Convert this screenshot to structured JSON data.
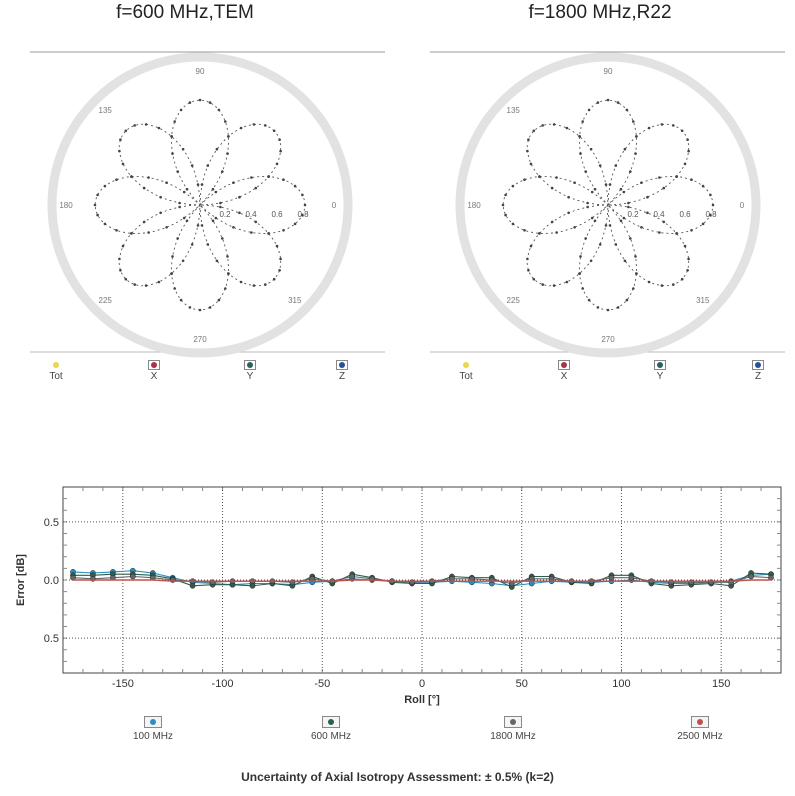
{
  "polar_plots": [
    {
      "title": "f=600 MHz,TEM",
      "angle_labels": [
        "90",
        "135",
        "180",
        "225",
        "270",
        "315",
        "0"
      ],
      "radial_labels": [
        "0.2",
        "0.4",
        "0.6",
        "0.8"
      ],
      "legend": [
        {
          "label": "Tot",
          "color": "#e8d84a"
        },
        {
          "label": "X",
          "color": "#a8324a"
        },
        {
          "label": "Y",
          "color": "#2e5e5e"
        },
        {
          "label": "Z",
          "color": "#2a4f9a"
        }
      ]
    },
    {
      "title": "f=1800 MHz,R22",
      "angle_labels": [
        "90",
        "135",
        "180",
        "225",
        "270",
        "315",
        "0"
      ],
      "radial_labels": [
        "0.2",
        "0.4",
        "0.6",
        "0.8"
      ],
      "legend": [
        {
          "label": "Tot",
          "color": "#e8d84a"
        },
        {
          "label": "X",
          "color": "#a8324a"
        },
        {
          "label": "Y",
          "color": "#2e5e5e"
        },
        {
          "label": "Z",
          "color": "#2a4f9a"
        }
      ]
    }
  ],
  "chart_data": {
    "type": "line",
    "xlabel": "Roll [°]",
    "ylabel": "Error [dB]",
    "xlim": [
      -180,
      180
    ],
    "ylim": [
      -0.8,
      0.8
    ],
    "xticks": [
      "-150",
      "-100",
      "-50",
      "0",
      "50",
      "100",
      "150"
    ],
    "yticks": [
      "0.5",
      "0.0",
      "0.5"
    ],
    "ytick_values": [
      0.5,
      0.0,
      -0.5
    ],
    "grid": true,
    "legend_position": "bottom",
    "x": [
      -175,
      -165,
      -155,
      -145,
      -135,
      -125,
      -115,
      -105,
      -95,
      -85,
      -75,
      -65,
      -55,
      -45,
      -35,
      -25,
      -15,
      -5,
      5,
      15,
      25,
      35,
      45,
      55,
      65,
      75,
      85,
      95,
      105,
      115,
      125,
      135,
      145,
      155,
      165,
      175
    ],
    "series": [
      {
        "name": "100 MHz",
        "color": "#2a8fbf",
        "values": [
          0.07,
          0.06,
          0.07,
          0.08,
          0.06,
          0.02,
          -0.02,
          -0.03,
          -0.04,
          -0.03,
          -0.03,
          -0.04,
          -0.02,
          -0.01,
          0.01,
          0.0,
          -0.01,
          -0.02,
          -0.02,
          -0.01,
          -0.02,
          -0.03,
          -0.05,
          -0.03,
          -0.01,
          -0.02,
          -0.02,
          -0.01,
          0.0,
          -0.02,
          -0.03,
          -0.03,
          -0.02,
          -0.01,
          0.04,
          0.05
        ]
      },
      {
        "name": "600 MHz",
        "color": "#2e5e4e",
        "values": [
          0.04,
          0.04,
          0.05,
          0.05,
          0.04,
          0.01,
          -0.05,
          -0.04,
          -0.04,
          -0.05,
          -0.03,
          -0.05,
          0.03,
          -0.03,
          0.05,
          0.02,
          -0.02,
          -0.03,
          -0.03,
          0.03,
          0.02,
          0.02,
          -0.06,
          0.03,
          0.03,
          -0.02,
          -0.03,
          0.04,
          0.04,
          -0.03,
          -0.05,
          -0.04,
          -0.03,
          -0.05,
          0.06,
          0.05
        ]
      },
      {
        "name": "1800 MHz",
        "color": "#666666",
        "values": [
          0.02,
          0.01,
          0.02,
          0.03,
          0.02,
          0.0,
          -0.01,
          -0.02,
          -0.01,
          -0.01,
          -0.01,
          -0.02,
          0.01,
          -0.01,
          0.03,
          0.01,
          -0.01,
          -0.02,
          -0.01,
          0.01,
          0.01,
          0.0,
          -0.03,
          0.01,
          0.01,
          -0.01,
          -0.01,
          0.02,
          0.02,
          -0.01,
          -0.02,
          -0.02,
          -0.02,
          -0.02,
          0.03,
          0.02
        ]
      },
      {
        "name": "2500 MHz",
        "color": "#c0504d",
        "values": [
          0.0,
          0.0,
          0.0,
          0.0,
          0.0,
          -0.01,
          -0.01,
          -0.01,
          -0.01,
          -0.01,
          -0.01,
          -0.01,
          -0.01,
          -0.01,
          0.0,
          0.0,
          -0.01,
          -0.01,
          -0.01,
          -0.01,
          -0.01,
          -0.01,
          -0.01,
          -0.01,
          -0.01,
          -0.01,
          -0.01,
          -0.01,
          -0.01,
          -0.01,
          -0.01,
          -0.01,
          -0.01,
          -0.01,
          0.0,
          0.0
        ]
      }
    ]
  },
  "footer": "Uncertainty of Axial Isotropy Assessment: ± 0.5% (k=2)"
}
